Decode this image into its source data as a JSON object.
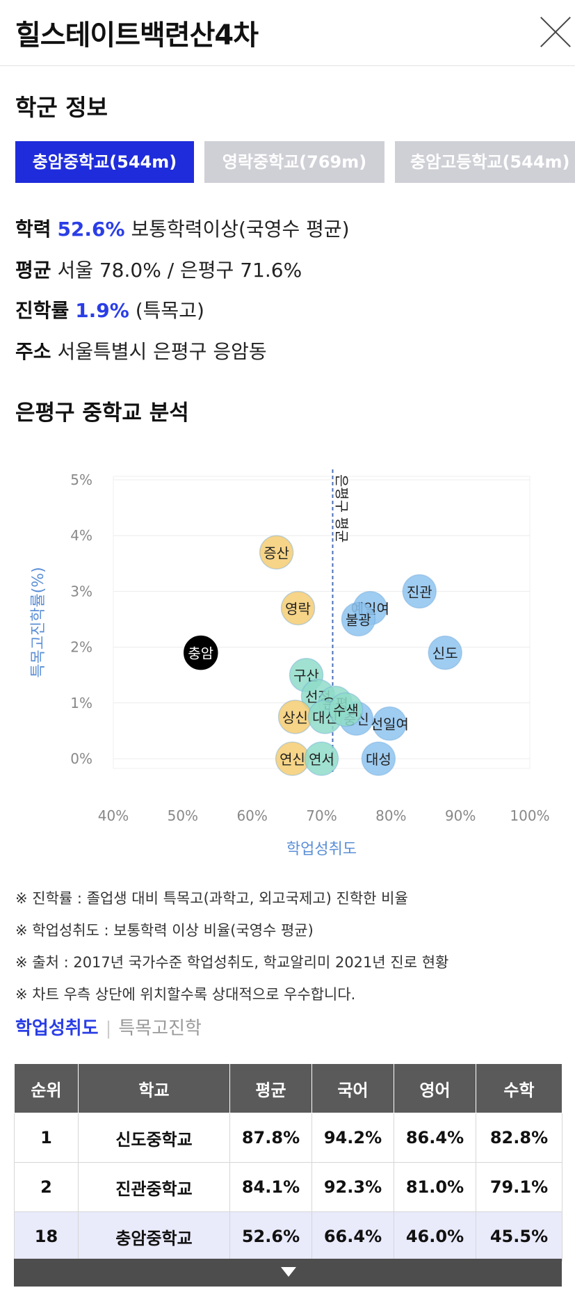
{
  "header": {
    "title": "힐스테이트백련산4차"
  },
  "school_info": {
    "section_title": "학군 정보",
    "tabs": [
      {
        "label": "충암중학교(544m)",
        "active": true
      },
      {
        "label": "영락중학교(769m)",
        "active": false
      },
      {
        "label": "충암고등학교(544m)",
        "active": false
      }
    ],
    "academic": {
      "label": "학력",
      "value": "52.6%",
      "desc": "보통학력이상(국영수 평균)"
    },
    "average": {
      "label": "평균",
      "value": "서울 78.0% / 은평구 71.6%"
    },
    "advancement": {
      "label": "진학률",
      "value": "1.9%",
      "desc": "(특목고)"
    },
    "address": {
      "label": "주소",
      "value": "서울특별시 은평구 응암동"
    }
  },
  "chart_section": {
    "title": "은평구 중학교 분석"
  },
  "chart_data": {
    "type": "scatter",
    "xlabel": "학업성취도",
    "ylabel": "특목고진학률(%)",
    "xlim": [
      40,
      100
    ],
    "ylim": [
      0,
      5
    ],
    "x_ticks": [
      "40%",
      "50%",
      "60%",
      "70%",
      "80%",
      "90%",
      "100%"
    ],
    "y_ticks": [
      "0%",
      "1%",
      "2%",
      "3%",
      "4%",
      "5%"
    ],
    "reference_line": {
      "x": 71.6,
      "label": "은평구 평균"
    },
    "grid": "horizontal",
    "colors": {
      "current": "#000000",
      "above": "#8ec3ee",
      "below": "#f5cd73",
      "mid": "#8fdcc9",
      "axis": "#5b8fd6",
      "ref": "#4a6fb5"
    },
    "points": [
      {
        "name": "증산",
        "x": 63.5,
        "y": 3.7,
        "group": "below"
      },
      {
        "name": "영락",
        "x": 66.6,
        "y": 2.7,
        "group": "below"
      },
      {
        "name": "충암",
        "x": 52.6,
        "y": 1.9,
        "group": "current"
      },
      {
        "name": "구산",
        "x": 67.8,
        "y": 1.5,
        "group": "mid"
      },
      {
        "name": "선정",
        "x": 69.5,
        "y": 1.12,
        "group": "mid"
      },
      {
        "name": "상신",
        "x": 66.2,
        "y": 0.75,
        "group": "below"
      },
      {
        "name": "연신",
        "x": 65.8,
        "y": 0.0,
        "group": "below"
      },
      {
        "name": "연서",
        "x": 70.0,
        "y": 0.0,
        "group": "mid"
      },
      {
        "name": "대성",
        "x": 78.2,
        "y": 0.0,
        "group": "above"
      },
      {
        "name": "선일여",
        "x": 79.8,
        "y": 0.63,
        "group": "above"
      },
      {
        "name": "충신",
        "x": 75.0,
        "y": 0.72,
        "group": "above"
      },
      {
        "name": "신도",
        "x": 87.8,
        "y": 1.9,
        "group": "above"
      },
      {
        "name": "진관",
        "x": 84.1,
        "y": 3.0,
        "group": "above"
      },
      {
        "name": "예일여",
        "x": 77.0,
        "y": 2.7,
        "group": "above"
      },
      {
        "name": "불광",
        "x": 75.3,
        "y": 2.5,
        "group": "above"
      },
      {
        "name": "은평",
        "x": 72.0,
        "y": 1.0,
        "group": "mid"
      },
      {
        "name": "대신",
        "x": 70.5,
        "y": 0.75,
        "group": "mid"
      },
      {
        "name": "수색",
        "x": 73.5,
        "y": 0.88,
        "group": "mid"
      }
    ]
  },
  "notes": [
    "※ 진학률 : 졸업생 대비 특목고(과학고, 외고국제고) 진학한 비율",
    "※ 학업성취도 : 보통학력 이상 비율(국영수 평균)",
    "※ 출처 : 2017년 국가수준 학업성취도, 학교알리미 2021년 진로 현황",
    "※ 차트 우측 상단에 위치할수록 상대적으로 우수합니다."
  ],
  "subtabs": [
    {
      "label": "학업성취도",
      "active": true
    },
    {
      "label": "특목고진학",
      "active": false
    }
  ],
  "table": {
    "headers": [
      "순위",
      "학교",
      "평균",
      "국어",
      "영어",
      "수학"
    ],
    "rows": [
      [
        "1",
        "신도중학교",
        "87.8%",
        "94.2%",
        "86.4%",
        "82.8%"
      ],
      [
        "2",
        "진관중학교",
        "84.1%",
        "92.3%",
        "81.0%",
        "79.1%"
      ],
      [
        "18",
        "충암중학교",
        "52.6%",
        "66.4%",
        "46.0%",
        "45.5%"
      ]
    ]
  }
}
